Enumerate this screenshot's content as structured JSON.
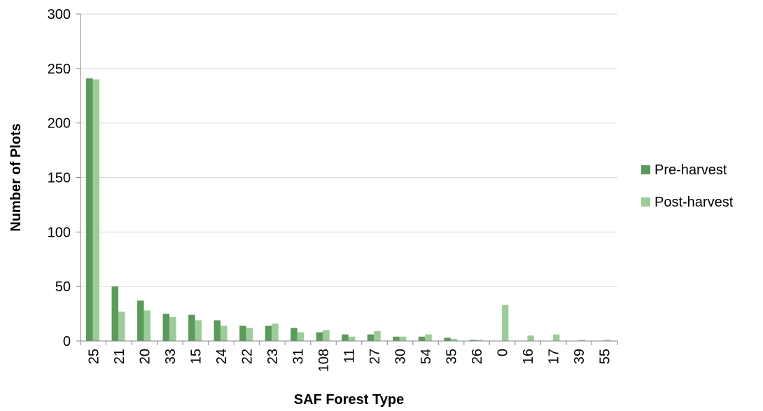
{
  "chart_data": {
    "type": "bar",
    "title": "",
    "xlabel": "SAF Forest Type",
    "ylabel": "Number of Plots",
    "ylim": [
      0,
      300
    ],
    "yticks": [
      0,
      50,
      100,
      150,
      200,
      250,
      300
    ],
    "grid": true,
    "legend_position": "right",
    "categories": [
      "25",
      "21",
      "20",
      "33",
      "15",
      "24",
      "22",
      "23",
      "31",
      "108",
      "11",
      "27",
      "30",
      "54",
      "35",
      "26",
      "0",
      "16",
      "17",
      "39",
      "55"
    ],
    "series": [
      {
        "name": "Pre-harvest",
        "color": "#5b9a5b",
        "values": [
          241,
          50,
          37,
          25,
          24,
          19,
          14,
          14,
          12,
          8,
          6,
          6,
          4,
          4,
          3,
          1,
          0,
          0,
          0,
          0,
          0
        ]
      },
      {
        "name": "Post-harvest",
        "color": "#9ccc99",
        "values": [
          240,
          27,
          28,
          22,
          19,
          14,
          12,
          16,
          8,
          10,
          4,
          9,
          4,
          6,
          2,
          1,
          33,
          5,
          6,
          1,
          1
        ]
      }
    ]
  }
}
